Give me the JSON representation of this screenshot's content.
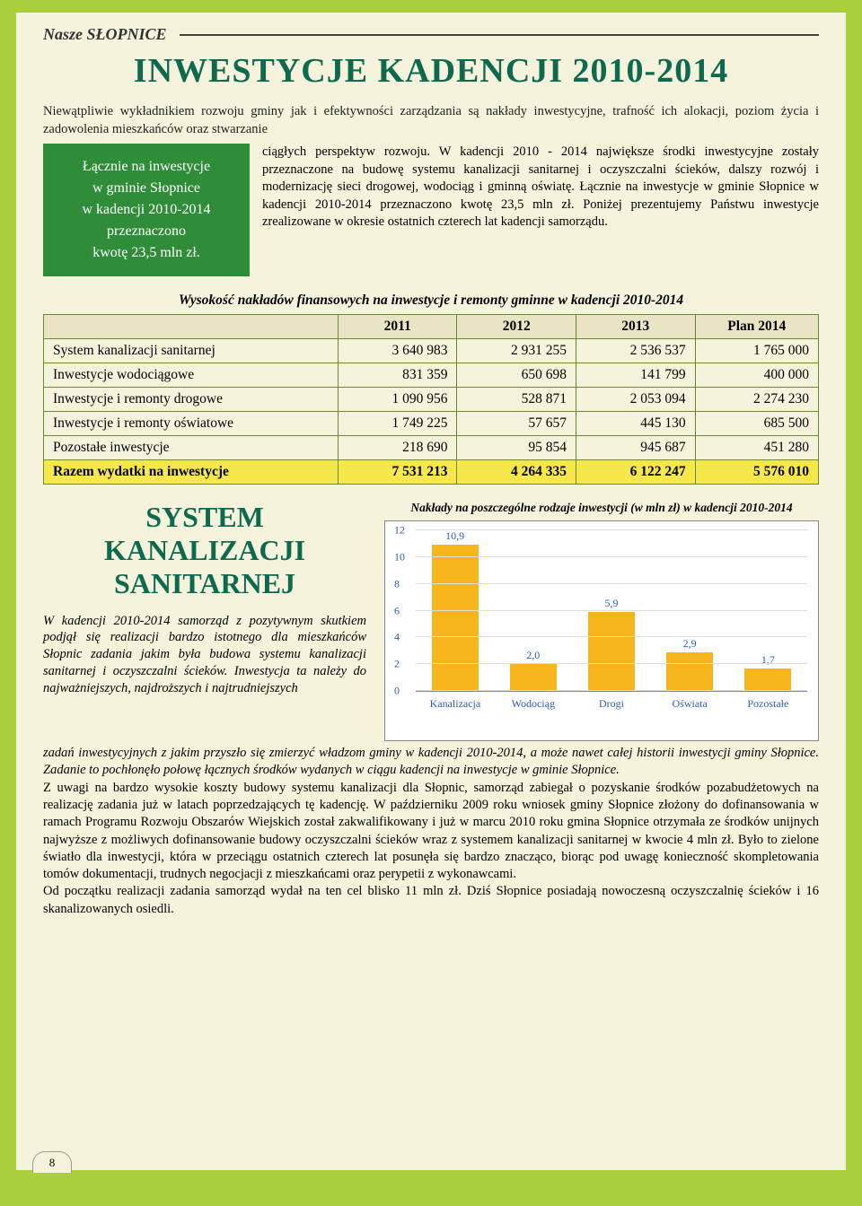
{
  "brand": "Nasze SŁOPNICE",
  "page_number": "8",
  "main_title": "INWESTYCJE KADENCJI 2010-2014",
  "intro_top": "Niewątpliwie wykładnikiem rozwoju gminy jak i efektywności zarządzania są nakłady inwestycyjne, trafność ich alokacji, poziom życia i zadowolenia mieszkańców oraz stwarzanie",
  "callout": {
    "l1": "Łącznie na inwestycje",
    "l2": "w gminie Słopnice",
    "l3": "w kadencji 2010-2014",
    "l4": "przeznaczono",
    "l5": "kwotę 23,5 mln zł."
  },
  "intro_right": "ciągłych perspektyw rozwoju. W kadencji 2010 - 2014 największe środki inwestycyjne zostały przeznaczone na budowę systemu kanalizacji sanitarnej i oczyszczalni ścieków, dalszy rozwój i modernizację sieci drogowej, wodociąg i gminną oświatę. Łącznie na inwestycje w gminie Słopnice w kadencji 2010-2014 przeznaczono kwotę 23,5 mln zł. Poniżej prezentujemy Państwu inwestycje zrealizowane w okresie ostatnich czterech lat kadencji samorządu.",
  "table": {
    "caption": "Wysokość nakładów finansowych na inwestycje i remonty gminne w kadencji 2010-2014",
    "headers": [
      "",
      "2011",
      "2012",
      "2013",
      "Plan 2014"
    ],
    "rows": [
      [
        "System kanalizacji sanitarnej",
        "3 640 983",
        "2 931 255",
        "2 536 537",
        "1 765 000"
      ],
      [
        "Inwestycje wodociągowe",
        "831 359",
        "650 698",
        "141 799",
        "400 000"
      ],
      [
        "Inwestycje i remonty drogowe",
        "1 090 956",
        "528 871",
        "2 053 094",
        "2 274 230"
      ],
      [
        "Inwestycje i remonty oświatowe",
        "1 749 225",
        "57 657",
        "445 130",
        "685 500"
      ],
      [
        "Pozostałe inwestycje",
        "218 690",
        "95 854",
        "945 687",
        "451 280"
      ]
    ],
    "total_row": [
      "Razem wydatki na inwestycje",
      "7 531 213",
      "4 264 335",
      "6 122 247",
      "5 576 010"
    ]
  },
  "sub_title_l1": "SYSTEM",
  "sub_title_l2": "KANALIZACJI",
  "sub_title_l3": "SANITARNEJ",
  "sub_text": "W kadencji 2010-2014 samorząd z pozy­tywnym skutkiem podjął się realizacji bardzo istotnego dla mieszkańców Słopnic zadania jakim była budowa systemu kanalizacji sanitarnej i oczyszczalni ścieków. Inwestycja ta należy do najważ­niejszych, najdroższych i najtrudniejszych",
  "chart": {
    "title": "Nakłady na poszczególne rodzaje inwestycji (w mln zł) w kadencji 2010-2014",
    "ymax": 12,
    "ytick_step": 2,
    "bar_color": "#f7b51c",
    "categories": [
      "Kanalizacja",
      "Wodociąg",
      "Drogi",
      "Oświata",
      "Pozostałe"
    ],
    "values": [
      10.9,
      2.0,
      5.9,
      2.9,
      1.7
    ],
    "value_labels": [
      "10,9",
      "2,0",
      "5,9",
      "2,9",
      "1,7"
    ]
  },
  "body_p1_italic": "zadań inwestycyjnych z jakim przyszło się zmierzyć władzom gminy w kadencji 2010-2014, a może nawet całej historii inwestycji gminy Słopnice. Zadanie to pochłonęło połowę łącznych środków wydanych w ciągu kadencji na inwestycje w gminie Słopnice.",
  "body_p2": "Z uwagi na bardzo wysokie koszty budowy systemu kanalizacji dla Słopnic, samorząd zabiegał o pozyskanie środków pozabudżetowych na realizację zadania już w latach poprzedzających tę kadencję. W październiku 2009 roku wniosek gminy Słopnice złożony do dofinansowania w ramach Programu Rozwoju Obszarów Wiejskich został zakwalifikowany i już w marcu 2010 roku gmina Słopnice otrzymała ze środków unijnych najwyższe z możliwych dofinansowanie budowy oczyszczalni ścieków wraz z systemem kanalizacji sanitarnej w kwocie 4 mln zł. Było to zielone światło dla inwestycji, która w przeciągu ostatnich czterech lat posunęła się bardzo znacząco, biorąc pod uwagę konieczność skompletowania tomów dokumentacji, trudnych negocjacji z mieszkańcami oraz perypetii z wykonawcami.",
  "body_p3": "Od początku realizacji zadania samorząd wydał na ten cel blisko 11 mln zł. Dziś Słopnice posiadają nowoczesną oczyszczalnię ścieków i 16 skanalizowanych osiedli.",
  "colors": {
    "page_bg": "#a9cf3e",
    "paper_bg": "#f6f3dd",
    "title_color": "#0e6a4f",
    "callout_bg": "#2f8d3a",
    "table_border": "#6a8a33",
    "total_row_bg": "#f6e84a",
    "chart_bar": "#f7b51c",
    "chart_label": "#2a5cbf"
  }
}
